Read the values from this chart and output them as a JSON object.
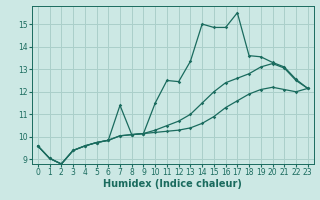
{
  "xlabel": "Humidex (Indice chaleur)",
  "bg_color": "#cce8e4",
  "line_color": "#1a6b5e",
  "grid_color": "#aacfca",
  "lines": [
    {
      "x": [
        0,
        1,
        2,
        3,
        4,
        5,
        6,
        7,
        8,
        9,
        10,
        11,
        12,
        13,
        14,
        15,
        16,
        17,
        18,
        19,
        20,
        21,
        22,
        23
      ],
      "y": [
        9.6,
        9.05,
        8.8,
        9.4,
        9.6,
        9.75,
        9.85,
        11.4,
        10.1,
        10.15,
        11.5,
        12.5,
        12.45,
        13.35,
        15.0,
        14.85,
        14.85,
        15.5,
        13.6,
        13.55,
        13.3,
        13.1,
        12.55,
        12.15
      ]
    },
    {
      "x": [
        0,
        1,
        2,
        3,
        4,
        5,
        6,
        7,
        8,
        9,
        10,
        11,
        12,
        13,
        14,
        15,
        16,
        17,
        18,
        19,
        20,
        21,
        22,
        23
      ],
      "y": [
        9.6,
        9.05,
        8.8,
        9.4,
        9.6,
        9.75,
        9.85,
        10.05,
        10.1,
        10.15,
        10.3,
        10.5,
        10.7,
        11.0,
        11.5,
        12.0,
        12.4,
        12.6,
        12.8,
        13.1,
        13.25,
        13.05,
        12.5,
        12.15
      ]
    },
    {
      "x": [
        0,
        1,
        2,
        3,
        4,
        5,
        6,
        7,
        8,
        9,
        10,
        11,
        12,
        13,
        14,
        15,
        16,
        17,
        18,
        19,
        20,
        21,
        22,
        23
      ],
      "y": [
        9.6,
        9.05,
        8.8,
        9.4,
        9.6,
        9.75,
        9.85,
        10.05,
        10.1,
        10.15,
        10.2,
        10.25,
        10.3,
        10.4,
        10.6,
        10.9,
        11.3,
        11.6,
        11.9,
        12.1,
        12.2,
        12.1,
        12.0,
        12.15
      ]
    }
  ],
  "xlim": [
    -0.5,
    23.5
  ],
  "ylim": [
    8.8,
    15.8
  ],
  "xticks": [
    0,
    1,
    2,
    3,
    4,
    5,
    6,
    7,
    8,
    9,
    10,
    11,
    12,
    13,
    14,
    15,
    16,
    17,
    18,
    19,
    20,
    21,
    22,
    23
  ],
  "yticks": [
    9,
    10,
    11,
    12,
    13,
    14,
    15
  ],
  "tick_fontsize": 5.5,
  "xlabel_fontsize": 7.0
}
